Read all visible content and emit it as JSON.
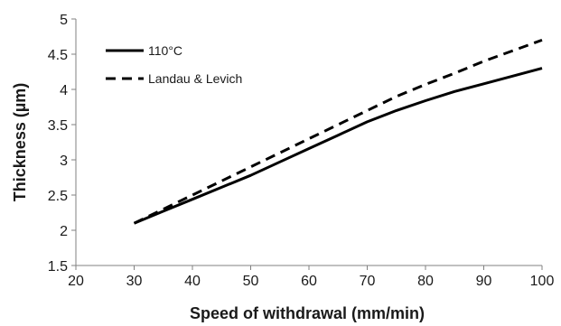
{
  "chart_data": {
    "type": "line",
    "title": "",
    "xlabel": "Speed of withdrawal (mm/min)",
    "ylabel": "Thickness (µm)",
    "xlim": [
      20,
      100
    ],
    "ylim": [
      1.5,
      5
    ],
    "xticks": [
      "20",
      "30",
      "40",
      "50",
      "60",
      "70",
      "80",
      "90",
      "100"
    ],
    "yticks": [
      "1.5",
      "2",
      "2.5",
      "3",
      "3.5",
      "4",
      "4.5",
      "5"
    ],
    "grid": false,
    "legend_position": "top-left",
    "series": [
      {
        "name": "110°C",
        "style": "solid",
        "color": "#000000",
        "x": [
          30,
          35,
          40,
          45,
          50,
          55,
          60,
          65,
          70,
          75,
          80,
          85,
          90,
          95,
          100
        ],
        "y": [
          2.1,
          2.27,
          2.44,
          2.61,
          2.78,
          2.97,
          3.16,
          3.35,
          3.54,
          3.7,
          3.84,
          3.97,
          4.08,
          4.19,
          4.3
        ]
      },
      {
        "name": "Landau & Levich",
        "style": "dashed",
        "color": "#000000",
        "x": [
          30,
          35,
          40,
          45,
          50,
          55,
          60,
          65,
          70,
          75,
          80,
          85,
          90,
          95,
          100
        ],
        "y": [
          2.1,
          2.3,
          2.5,
          2.7,
          2.9,
          3.1,
          3.3,
          3.5,
          3.7,
          3.9,
          4.07,
          4.23,
          4.4,
          4.55,
          4.7
        ]
      }
    ]
  }
}
